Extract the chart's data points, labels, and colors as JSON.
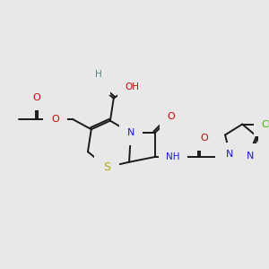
{
  "bg_color": "#e8e8e8",
  "bond_color": "#1a1a1a",
  "bond_width": 1.4,
  "N_color": "#1a1acc",
  "O_color": "#cc0000",
  "S_color": "#b8a800",
  "Cl_color": "#38b000",
  "H_color": "#4a8888",
  "figsize": [
    3.0,
    3.0
  ],
  "dpi": 100,
  "xlim": [
    0,
    300
  ],
  "ylim": [
    0,
    300
  ]
}
